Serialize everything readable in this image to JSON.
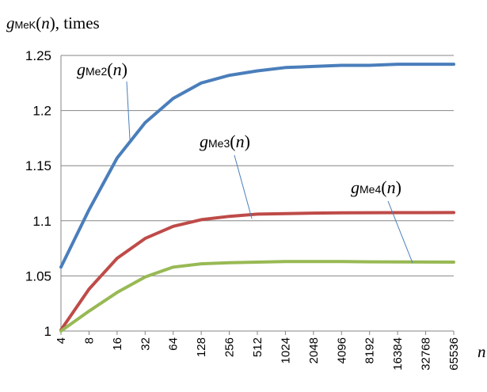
{
  "chart_data": {
    "type": "line",
    "ylabel": {
      "sym": "g",
      "sub": "MeK",
      "arg": "(n)",
      "unit": ", times"
    },
    "xlabel": "n",
    "categories": [
      "4",
      "8",
      "16",
      "32",
      "64",
      "128",
      "256",
      "512",
      "1024",
      "2048",
      "4096",
      "8192",
      "16384",
      "32768",
      "65536"
    ],
    "ylim": [
      1,
      1.25
    ],
    "yticks": [
      "1",
      "1.05",
      "1.1",
      "1.15",
      "1.2",
      "1.25"
    ],
    "grid": "horizontal",
    "series": [
      {
        "name": "g_Me2(n)",
        "label": {
          "sym": "g",
          "sub": "Me2",
          "arg": "(n)"
        },
        "color": "#4a7ebb",
        "values": [
          1.058,
          1.11,
          1.157,
          1.189,
          1.211,
          1.225,
          1.232,
          1.236,
          1.239,
          1.24,
          1.241,
          1.241,
          1.242,
          1.242,
          1.242
        ]
      },
      {
        "name": "g_Me3(n)",
        "label": {
          "sym": "g",
          "sub": "Me3",
          "arg": "(n)"
        },
        "color": "#be4b48",
        "values": [
          1.001,
          1.038,
          1.066,
          1.084,
          1.095,
          1.101,
          1.104,
          1.106,
          1.1065,
          1.107,
          1.1072,
          1.1073,
          1.1074,
          1.1074,
          1.1075
        ]
      },
      {
        "name": "g_Me4(n)",
        "label": {
          "sym": "g",
          "sub": "Me4",
          "arg": "(n)"
        },
        "color": "#98b954",
        "values": [
          1.0,
          1.018,
          1.035,
          1.049,
          1.058,
          1.061,
          1.062,
          1.0625,
          1.063,
          1.063,
          1.063,
          1.0628,
          1.0627,
          1.0626,
          1.0625
        ]
      }
    ]
  }
}
